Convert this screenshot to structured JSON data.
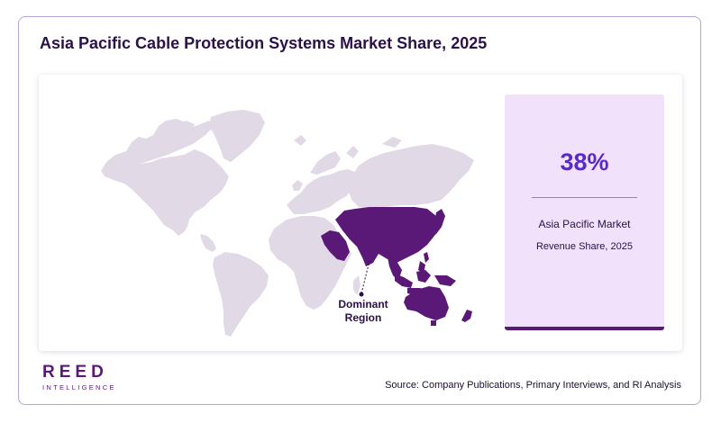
{
  "title": "Asia Pacific Cable Protection Systems Market Share, 2025",
  "map": {
    "highlighted_region": "Asia Pacific",
    "callout": "Dominant Region",
    "colors": {
      "land": "#e2d9e6",
      "highlight": "#5a1877"
    }
  },
  "stat": {
    "value": "38%",
    "label": "Asia Pacific Market",
    "sublabel": "Revenue Share, 2025",
    "colors": {
      "background": "#f1e1fb",
      "value": "#5a2bc4",
      "accent_bar": "#5a1877"
    }
  },
  "logo": {
    "name": "REED",
    "tagline": "INTELLIGENCE"
  },
  "source": "Source: Company Publications, Primary Interviews, and RI Analysis"
}
